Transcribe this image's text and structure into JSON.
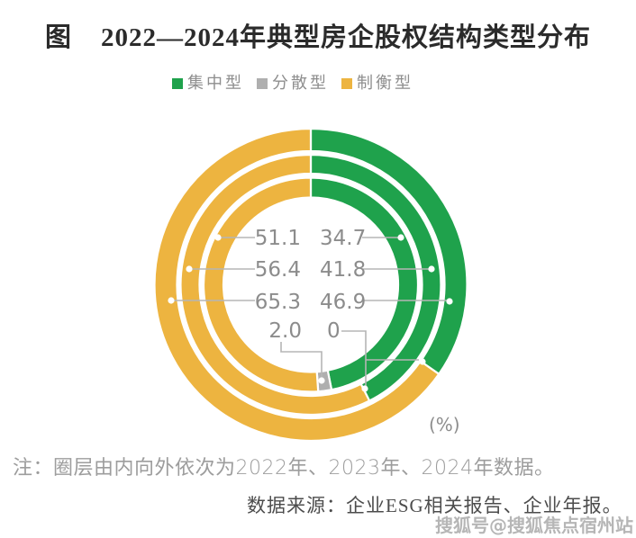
{
  "header": {
    "figure_label": "图",
    "title": "2022—2024年典型房企股权结构类型分布"
  },
  "legend": [
    {
      "label": "集中型",
      "color": "#1fa24c"
    },
    {
      "label": "分散型",
      "color": "#afafaf"
    },
    {
      "label": "制衡型",
      "color": "#edb440"
    }
  ],
  "chart_data": {
    "type": "donut",
    "title": "2022—2024年典型房企股权结构类型分布",
    "unit": "(%)",
    "legend_position": "top",
    "legend_entries": [
      "集中型",
      "分散型",
      "制衡型"
    ],
    "colors": {
      "集中型": "#1fa24c",
      "分散型": "#afafaf",
      "制衡型": "#edb440"
    },
    "ring_order_note": "圈层由内向外依次为2022年、2023年、2024年数据",
    "rings_inner_to_outer": [
      {
        "year": "2022",
        "values": {
          "集中型": 46.9,
          "分散型": 2.0,
          "制衡型": 51.1
        }
      },
      {
        "year": "2023",
        "values": {
          "集中型": 41.8,
          "分散型": 0,
          "制衡型": 56.4
        }
      },
      {
        "year": "2024",
        "values": {
          "集中型": 34.7,
          "分散型": 0,
          "制衡型": 65.3
        }
      }
    ],
    "value_labels": {
      "zhiheng_column": [
        "51.1",
        "56.4",
        "65.3",
        "2.0"
      ],
      "jizhong_column": [
        "34.7",
        "41.8",
        "46.9",
        "0"
      ]
    }
  },
  "footer": {
    "note": "注：圈层由内向外依次为2022年、2023年、2024年数据。",
    "source": "数据来源：企业ESG相关报告、企业年报。"
  },
  "watermark": "搜狐号@搜狐焦点宿州站"
}
